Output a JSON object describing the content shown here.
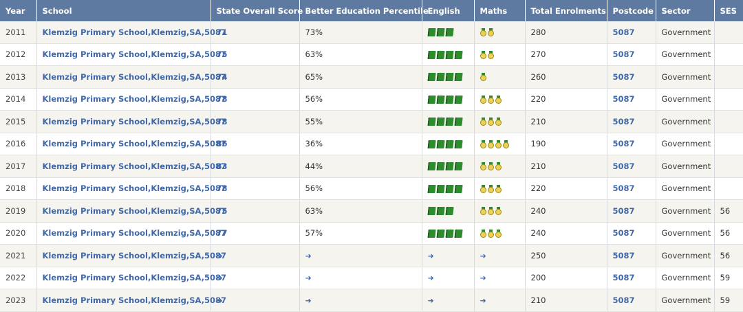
{
  "headers": [
    "Year",
    "School",
    "State Overall Score",
    "Better Education Percentile",
    "English",
    "Maths",
    "Total Enrolments",
    "Postcode",
    "Sector",
    "SES"
  ],
  "rows": [
    {
      "year": "2011",
      "school": "Klemzig Primary School,Klemzig,SA,5087",
      "score": "71",
      "percentile": "73%",
      "english": 3,
      "maths": 2,
      "enrol": "280",
      "postcode": "5087",
      "sector": "Government",
      "ses": ""
    },
    {
      "year": "2012",
      "school": "Klemzig Primary School,Klemzig,SA,5087",
      "score": "75",
      "percentile": "63%",
      "english": 4,
      "maths": 2,
      "enrol": "270",
      "postcode": "5087",
      "sector": "Government",
      "ses": ""
    },
    {
      "year": "2013",
      "school": "Klemzig Primary School,Klemzig,SA,5087",
      "score": "74",
      "percentile": "65%",
      "english": 4,
      "maths": 1,
      "enrol": "260",
      "postcode": "5087",
      "sector": "Government",
      "ses": ""
    },
    {
      "year": "2014",
      "school": "Klemzig Primary School,Klemzig,SA,5087",
      "score": "78",
      "percentile": "56%",
      "english": 4,
      "maths": 3,
      "enrol": "220",
      "postcode": "5087",
      "sector": "Government",
      "ses": ""
    },
    {
      "year": "2015",
      "school": "Klemzig Primary School,Klemzig,SA,5087",
      "score": "78",
      "percentile": "55%",
      "english": 4,
      "maths": 3,
      "enrol": "210",
      "postcode": "5087",
      "sector": "Government",
      "ses": ""
    },
    {
      "year": "2016",
      "school": "Klemzig Primary School,Klemzig,SA,5087",
      "score": "86",
      "percentile": "36%",
      "english": 4,
      "maths": 4,
      "enrol": "190",
      "postcode": "5087",
      "sector": "Government",
      "ses": ""
    },
    {
      "year": "2017",
      "school": "Klemzig Primary School,Klemzig,SA,5087",
      "score": "83",
      "percentile": "44%",
      "english": 4,
      "maths": 3,
      "enrol": "210",
      "postcode": "5087",
      "sector": "Government",
      "ses": ""
    },
    {
      "year": "2018",
      "school": "Klemzig Primary School,Klemzig,SA,5087",
      "score": "78",
      "percentile": "56%",
      "english": 4,
      "maths": 3,
      "enrol": "220",
      "postcode": "5087",
      "sector": "Government",
      "ses": ""
    },
    {
      "year": "2019",
      "school": "Klemzig Primary School,Klemzig,SA,5087",
      "score": "75",
      "percentile": "63%",
      "english": 3,
      "maths": 3,
      "enrol": "240",
      "postcode": "5087",
      "sector": "Government",
      "ses": "56"
    },
    {
      "year": "2020",
      "school": "Klemzig Primary School,Klemzig,SA,5087",
      "score": "77",
      "percentile": "57%",
      "english": 4,
      "maths": 3,
      "enrol": "240",
      "postcode": "5087",
      "sector": "Government",
      "ses": "56"
    },
    {
      "year": "2021",
      "school": "Klemzig Primary School,Klemzig,SA,5087",
      "score": null,
      "percentile": null,
      "english": null,
      "maths": null,
      "enrol": "250",
      "postcode": "5087",
      "sector": "Government",
      "ses": "56"
    },
    {
      "year": "2022",
      "school": "Klemzig Primary School,Klemzig,SA,5087",
      "score": null,
      "percentile": null,
      "english": null,
      "maths": null,
      "enrol": "200",
      "postcode": "5087",
      "sector": "Government",
      "ses": "59"
    },
    {
      "year": "2023",
      "school": "Klemzig Primary School,Klemzig,SA,5087",
      "score": null,
      "percentile": null,
      "english": null,
      "maths": null,
      "enrol": "210",
      "postcode": "5087",
      "sector": "Government",
      "ses": "59"
    }
  ],
  "icons": {
    "english": "book-icon",
    "maths": "medal-icon",
    "locked": "login-icon"
  },
  "colors": {
    "header_bg": "#5f7aa0",
    "link": "#4169a8",
    "book": "#2e8b2e",
    "medal": "#e8d25a"
  }
}
